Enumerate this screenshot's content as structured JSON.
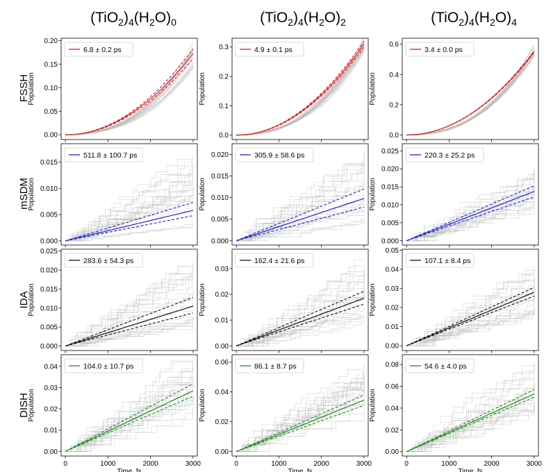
{
  "colors": {
    "FSSH": "#e41a1c",
    "mSDM": "#1f1fd6",
    "IDA": "#111111",
    "DISH": "#1a8c1a",
    "trajectories": "#b9b9b9"
  },
  "column_titles": [
    {
      "a": "(TiO",
      "s1": "2",
      "b": ")",
      "s2": "4",
      "c": "(H",
      "s3": "2",
      "d": "O)",
      "s4": "0"
    },
    {
      "a": "(TiO",
      "s1": "2",
      "b": ")",
      "s2": "4",
      "c": "(H",
      "s3": "2",
      "d": "O)",
      "s4": "2"
    },
    {
      "a": "(TiO",
      "s1": "2",
      "b": ")",
      "s2": "4",
      "c": "(H",
      "s3": "2",
      "d": "O)",
      "s4": "4"
    }
  ],
  "row_labels": [
    "FSSH",
    "mSDM",
    "IDA",
    "DISH"
  ],
  "chart_data": [
    {
      "type": "line",
      "method": "FSSH",
      "system_col": 0,
      "ylabel": "Population",
      "xlabel": "",
      "legend": "6.8 ± 0.2 ps",
      "legend_position": "top-left",
      "xlim": [
        -100,
        3100
      ],
      "ylim": [
        -0.01,
        0.205
      ],
      "yticks": [
        0.0,
        0.05,
        0.1,
        0.15,
        0.2
      ],
      "ytick_labels": [
        "0.00",
        "0.05",
        "0.10",
        "0.15",
        "0.20"
      ],
      "xticks": [
        0,
        1000,
        2000,
        3000
      ],
      "xtick_labels": [],
      "shape": "quad",
      "fit_end": 0.172,
      "band_end": [
        0.162,
        0.182
      ],
      "traj_end": [
        0.14,
        0.19
      ]
    },
    {
      "type": "line",
      "method": "FSSH",
      "system_col": 1,
      "ylabel": "Population",
      "xlabel": "",
      "legend": "4.9 ± 0.1 ps",
      "legend_position": "top-left",
      "xlim": [
        -100,
        3100
      ],
      "ylim": [
        -0.015,
        0.33
      ],
      "yticks": [
        0.0,
        0.1,
        0.2,
        0.3
      ],
      "ytick_labels": [
        "0.0",
        "0.1",
        "0.2",
        "0.3"
      ],
      "xticks": [
        0,
        1000,
        2000,
        3000
      ],
      "xtick_labels": [],
      "shape": "quad",
      "fit_end": 0.31,
      "band_end": [
        0.3,
        0.32
      ],
      "traj_end": [
        0.28,
        0.33
      ]
    },
    {
      "type": "line",
      "method": "FSSH",
      "system_col": 2,
      "ylabel": "Population",
      "xlabel": "",
      "legend": "3.4 ± 0.0 ps",
      "legend_position": "top-left",
      "xlim": [
        -100,
        3100
      ],
      "ylim": [
        -0.03,
        0.64
      ],
      "yticks": [
        0.0,
        0.2,
        0.4,
        0.6
      ],
      "ytick_labels": [
        "0.0",
        "0.2",
        "0.4",
        "0.6"
      ],
      "xticks": [
        0,
        1000,
        2000,
        3000
      ],
      "xtick_labels": [],
      "shape": "quad",
      "fit_end": 0.55,
      "band_end": [
        0.545,
        0.555
      ],
      "traj_end": [
        0.52,
        0.58
      ]
    },
    {
      "type": "line",
      "method": "mSDM",
      "system_col": 0,
      "ylabel": "Population",
      "xlabel": "",
      "legend": "511.8 ± 100.7 ps",
      "legend_position": "top-left",
      "xlim": [
        -100,
        3100
      ],
      "ylim": [
        -0.0008,
        0.0185
      ],
      "yticks": [
        0.0,
        0.005,
        0.01,
        0.015
      ],
      "ytick_labels": [
        "0.000",
        "0.005",
        "0.010",
        "0.015"
      ],
      "xticks": [
        0,
        1000,
        2000,
        3000
      ],
      "xtick_labels": [],
      "shape": "linear",
      "fit_end": 0.0058,
      "band_end": [
        0.0048,
        0.0073
      ],
      "traj_end": [
        0.002,
        0.016
      ]
    },
    {
      "type": "line",
      "method": "mSDM",
      "system_col": 1,
      "ylabel": "Population",
      "xlabel": "",
      "legend": "305.9 ± 58.6 ps",
      "legend_position": "top-left",
      "xlim": [
        -100,
        3100
      ],
      "ylim": [
        -0.001,
        0.0225
      ],
      "yticks": [
        0.0,
        0.005,
        0.01,
        0.015,
        0.02
      ],
      "ytick_labels": [
        "0.000",
        "0.005",
        "0.010",
        "0.015",
        "0.020"
      ],
      "xticks": [
        0,
        1000,
        2000,
        3000
      ],
      "xtick_labels": [],
      "shape": "linear",
      "fit_end": 0.0098,
      "band_end": [
        0.0078,
        0.012
      ],
      "traj_end": [
        0.004,
        0.022
      ]
    },
    {
      "type": "line",
      "method": "mSDM",
      "system_col": 2,
      "ylabel": "Population",
      "xlabel": "",
      "legend": "220.3 ± 25.2 ps",
      "legend_position": "top-left",
      "xlim": [
        -100,
        3100
      ],
      "ylim": [
        -0.0012,
        0.027
      ],
      "yticks": [
        0.0,
        0.005,
        0.01,
        0.015,
        0.02,
        0.025
      ],
      "ytick_labels": [
        "0.000",
        "0.005",
        "0.010",
        "0.015",
        "0.020",
        "0.025"
      ],
      "xticks": [
        0,
        1000,
        2000,
        3000
      ],
      "xtick_labels": [],
      "shape": "linear",
      "fit_end": 0.0137,
      "band_end": [
        0.0122,
        0.0153
      ],
      "traj_end": [
        0.007,
        0.023
      ]
    },
    {
      "type": "line",
      "method": "IDA",
      "system_col": 0,
      "ylabel": "Population",
      "xlabel": "",
      "legend": "283.6 ± 54.3 ps",
      "legend_position": "top-left",
      "xlim": [
        -100,
        3100
      ],
      "ylim": [
        -0.0012,
        0.0255
      ],
      "yticks": [
        0.0,
        0.005,
        0.01,
        0.015,
        0.02,
        0.025
      ],
      "ytick_labels": [
        "0.000",
        "0.005",
        "0.010",
        "0.015",
        "0.020",
        "0.025"
      ],
      "xticks": [
        0,
        1000,
        2000,
        3000
      ],
      "xtick_labels": [],
      "shape": "linear",
      "fit_end": 0.0105,
      "band_end": [
        0.0087,
        0.0128
      ],
      "traj_end": [
        0.004,
        0.024
      ]
    },
    {
      "type": "line",
      "method": "IDA",
      "system_col": 1,
      "ylabel": "Population",
      "xlabel": "",
      "legend": "162.4 ± 21.6 ps",
      "legend_position": "top-left",
      "xlim": [
        -100,
        3100
      ],
      "ylim": [
        -0.0018,
        0.0375
      ],
      "yticks": [
        0.0,
        0.01,
        0.02,
        0.03
      ],
      "ytick_labels": [
        "0.00",
        "0.01",
        "0.02",
        "0.03"
      ],
      "xticks": [
        0,
        1000,
        2000,
        3000
      ],
      "xtick_labels": [],
      "shape": "linear",
      "fit_end": 0.0185,
      "band_end": [
        0.0162,
        0.0212
      ],
      "traj_end": [
        0.008,
        0.034
      ]
    },
    {
      "type": "line",
      "method": "IDA",
      "system_col": 2,
      "ylabel": "Population",
      "xlabel": "",
      "legend": "107.1 ± 8.4 ps",
      "legend_position": "top-left",
      "xlim": [
        -100,
        3100
      ],
      "ylim": [
        -0.0025,
        0.0505
      ],
      "yticks": [
        0.0,
        0.01,
        0.02,
        0.03,
        0.04,
        0.05
      ],
      "ytick_labels": [
        "0.00",
        "0.01",
        "0.02",
        "0.03",
        "0.04",
        "0.05"
      ],
      "xticks": [
        0,
        1000,
        2000,
        3000
      ],
      "xtick_labels": [],
      "shape": "linear",
      "fit_end": 0.028,
      "band_end": [
        0.026,
        0.0305
      ],
      "traj_end": [
        0.016,
        0.042
      ]
    },
    {
      "type": "line",
      "method": "DISH",
      "system_col": 0,
      "ylabel": "Population",
      "xlabel": "Time, fs",
      "legend": "104.0 ± 10.7 ps",
      "legend_position": "top-left",
      "xlim": [
        -100,
        3100
      ],
      "ylim": [
        -0.0022,
        0.0455
      ],
      "yticks": [
        0.0,
        0.01,
        0.02,
        0.03,
        0.04
      ],
      "ytick_labels": [
        "0.00",
        "0.01",
        "0.02",
        "0.03",
        "0.04"
      ],
      "xticks": [
        0,
        1000,
        2000,
        3000
      ],
      "xtick_labels": [
        "0",
        "1000",
        "2000",
        "3000"
      ],
      "shape": "linear",
      "fit_end": 0.0285,
      "band_end": [
        0.026,
        0.0318
      ],
      "traj_end": [
        0.02,
        0.045
      ]
    },
    {
      "type": "line",
      "method": "DISH",
      "system_col": 1,
      "ylabel": "Population",
      "xlabel": "Time, fs",
      "legend": "86.1 ± 8.7 ps",
      "legend_position": "top-left",
      "xlim": [
        -100,
        3100
      ],
      "ylim": [
        -0.003,
        0.065
      ],
      "yticks": [
        0.0,
        0.02,
        0.04,
        0.06
      ],
      "ytick_labels": [
        "0.00",
        "0.02",
        "0.04",
        "0.06"
      ],
      "xticks": [
        0,
        1000,
        2000,
        3000
      ],
      "xtick_labels": [
        "0",
        "1000",
        "2000",
        "3000"
      ],
      "shape": "linear",
      "fit_end": 0.0345,
      "band_end": [
        0.031,
        0.038
      ],
      "traj_end": [
        0.024,
        0.058
      ]
    },
    {
      "type": "line",
      "method": "DISH",
      "system_col": 2,
      "ylabel": "Population",
      "xlabel": "Time, fs",
      "legend": "54.6 ± 4.0 ps",
      "legend_position": "top-left",
      "xlim": [
        -100,
        3100
      ],
      "ylim": [
        -0.004,
        0.089
      ],
      "yticks": [
        0.0,
        0.02,
        0.04,
        0.06,
        0.08
      ],
      "ytick_labels": [
        "0.00",
        "0.02",
        "0.04",
        "0.06",
        "0.08"
      ],
      "xticks": [
        0,
        1000,
        2000,
        3000
      ],
      "xtick_labels": [
        "0",
        "1000",
        "2000",
        "3000"
      ],
      "shape": "linear",
      "fit_end": 0.053,
      "band_end": [
        0.05,
        0.057
      ],
      "traj_end": [
        0.036,
        0.082
      ]
    }
  ]
}
